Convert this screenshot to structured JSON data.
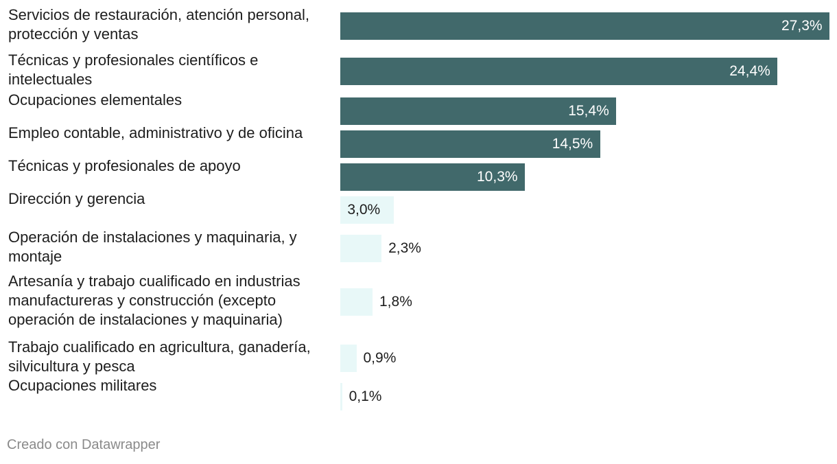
{
  "chart_data": {
    "type": "bar",
    "orientation": "horizontal",
    "categories": [
      "Servicios de restauración, atención personal, protección y ventas",
      "Técnicas y profesionales científicos e intelectuales",
      "Ocupaciones elementales",
      "Empleo contable, administrativo y de oficina",
      "Técnicas y profesionales de apoyo",
      "Dirección y gerencia",
      "Operación de instalaciones y maquinaria, y montaje",
      "Artesanía y trabajo cualificado en industrias manufactureras y construcción (excepto operación de instalaciones y maquinaria)",
      "Trabajo cualificado en agricultura, ganadería, silvicultura y pesca",
      "Ocupaciones militares"
    ],
    "values": [
      27.3,
      24.4,
      15.4,
      14.5,
      10.3,
      3.0,
      2.3,
      1.8,
      0.9,
      0.1
    ],
    "value_labels": [
      "27,3%",
      "24,4%",
      "15,4%",
      "14,5%",
      "10,3%",
      "3,0%",
      "2,3%",
      "1,8%",
      "0,9%",
      "0,1%"
    ],
    "xlim": [
      0,
      27.3
    ],
    "grid": false,
    "colors": {
      "highlight": "#41696b",
      "muted": "#e8f8f8"
    },
    "highlighted": [
      true,
      true,
      true,
      true,
      true,
      false,
      false,
      false,
      false,
      false
    ]
  },
  "footer": {
    "credit": "Creado con Datawrapper"
  }
}
